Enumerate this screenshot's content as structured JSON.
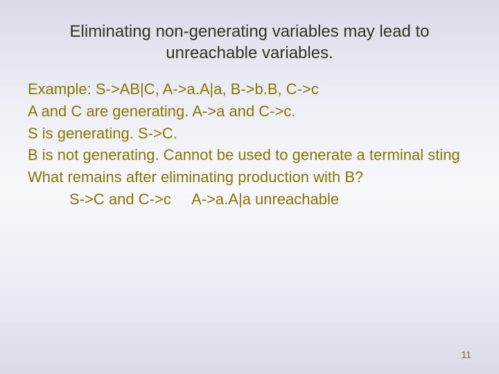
{
  "title": "Eliminating non-generating variables may lead to unreachable variables.",
  "lines": {
    "l1": "Example: S->AB|C, A->a.A|a, B->b.B, C->c",
    "l2": "A and C are generating. A->a and C->c.",
    "l3": "S is generating. S->C.",
    "l4": "B is not generating. Cannot be used to generate a terminal sting",
    "l5": "What remains after eliminating production with B?",
    "l6": "S->C and C->c     A->a.A|a unreachable"
  },
  "pageNumber": "11",
  "colors": {
    "titleColor": "#333322",
    "bodyColor": "#8b7500",
    "bgTop": "#d8dae8",
    "bgMid": "#f8f8fc"
  },
  "fonts": {
    "titleSize": 24,
    "bodySize": 22,
    "pageNumSize": 14
  }
}
